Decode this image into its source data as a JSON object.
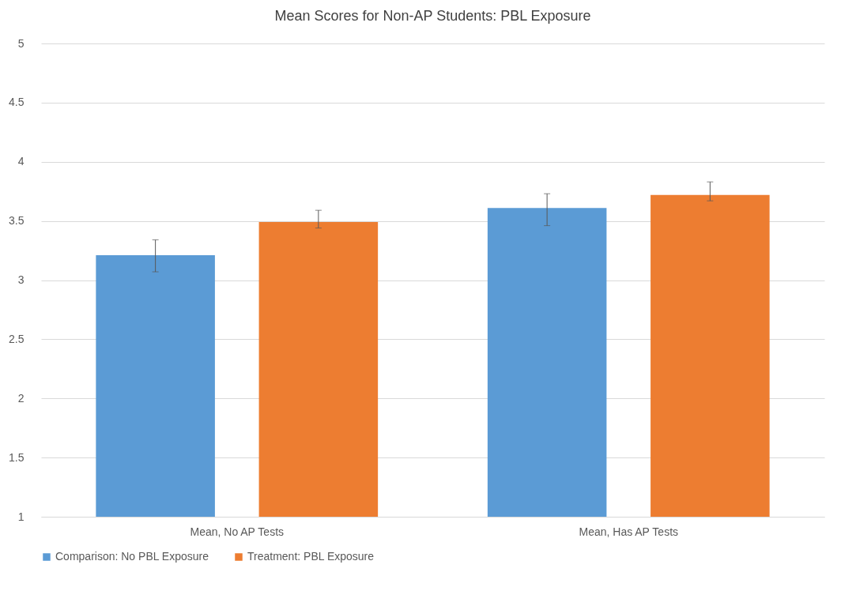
{
  "chart_data": {
    "type": "bar",
    "title": "Mean Scores for Non-AP Students: PBL Exposure",
    "categories": [
      "Mean, No AP Tests",
      "Mean, Has AP Tests"
    ],
    "series": [
      {
        "name": "Comparison: No PBL Exposure",
        "color": "#5b9bd5",
        "values": [
          3.21,
          3.61
        ],
        "errors": [
          [
            3.07,
            3.34
          ],
          [
            3.46,
            3.73
          ]
        ]
      },
      {
        "name": "Treatment: PBL Exposure",
        "color": "#ed7d31",
        "values": [
          3.49,
          3.72
        ],
        "errors": [
          [
            3.44,
            3.59
          ],
          [
            3.67,
            3.83
          ]
        ]
      }
    ],
    "ylim": [
      1,
      5
    ],
    "yticks": [
      1,
      1.5,
      2,
      2.5,
      3,
      3.5,
      4,
      4.5,
      5
    ],
    "grid": "y",
    "legend": "bottom"
  }
}
